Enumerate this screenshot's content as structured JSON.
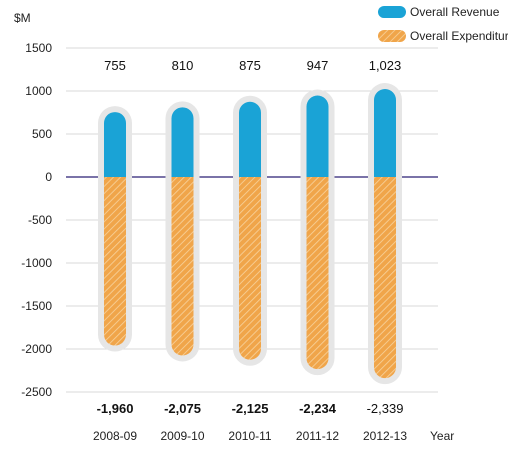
{
  "chart_data": {
    "type": "bar",
    "ylabel": "$M",
    "xlabel": "Year",
    "categories": [
      "2008-09",
      "2009-10",
      "2010-11",
      "2011-12",
      "2012-13"
    ],
    "series": [
      {
        "name": "Overall Revenue",
        "values": [
          755,
          810,
          875,
          947,
          1023
        ],
        "labels": [
          "755",
          "810",
          "875",
          "947",
          "1,023"
        ],
        "color": "#1aa3d6"
      },
      {
        "name": "Overall Expenditure",
        "values": [
          -1960,
          -2075,
          -2125,
          -2234,
          -2339
        ],
        "labels": [
          "-1,960",
          "-2,075",
          "-2,125",
          "-2,234",
          "-2,339"
        ],
        "color": "#f0a54a"
      }
    ],
    "ylim": [
      -2500,
      1500
    ],
    "yticks": [
      1500,
      1000,
      500,
      0,
      -500,
      -1000,
      -1500,
      -2000,
      -2500
    ],
    "grid": true,
    "legend": "top-right",
    "zero_line_color": "#7a73a8"
  }
}
